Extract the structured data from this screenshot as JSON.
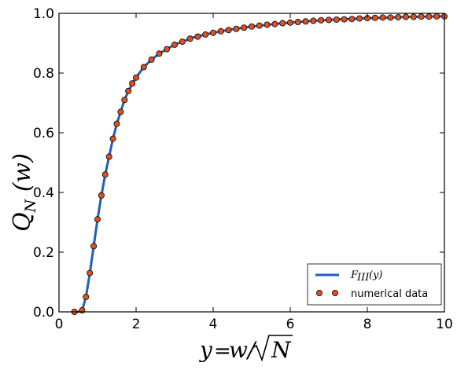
{
  "chart_data": {
    "type": "line",
    "title": "",
    "xlabel": "y = w/√N",
    "ylabel": "Q_N (w)",
    "xlim": [
      0,
      10
    ],
    "ylim": [
      0,
      1.0
    ],
    "x_ticks": [
      0,
      2,
      4,
      6,
      8,
      10
    ],
    "x_tick_labels": [
      "0",
      "2",
      "4",
      "6",
      "8",
      "10"
    ],
    "y_ticks": [
      0.0,
      0.2,
      0.4,
      0.6,
      0.8,
      1.0
    ],
    "y_tick_labels": [
      "0.0",
      "0.2",
      "0.4",
      "0.6",
      "0.8",
      "1.0"
    ],
    "grid": false,
    "legend_position": "bottom-right",
    "series": [
      {
        "name": "F_III(y)",
        "kind": "line",
        "color": "#1f5fbf",
        "x": [
          0.4,
          0.5,
          0.6,
          0.7,
          0.8,
          0.9,
          1.0,
          1.1,
          1.2,
          1.3,
          1.4,
          1.5,
          1.6,
          1.7,
          1.8,
          2.0,
          2.2,
          2.4,
          2.6,
          2.8,
          3.0,
          3.5,
          4.0,
          4.5,
          5.0,
          5.5,
          6.0,
          6.5,
          7.0,
          7.5,
          8.0,
          8.5,
          9.0,
          9.5,
          10.0
        ],
        "y": [
          0.0,
          0.0,
          0.005,
          0.05,
          0.13,
          0.22,
          0.31,
          0.39,
          0.46,
          0.52,
          0.58,
          0.63,
          0.67,
          0.71,
          0.74,
          0.785,
          0.82,
          0.845,
          0.865,
          0.88,
          0.895,
          0.92,
          0.935,
          0.947,
          0.956,
          0.963,
          0.969,
          0.974,
          0.978,
          0.981,
          0.984,
          0.986,
          0.988,
          0.989,
          0.99
        ]
      },
      {
        "name": "numerical data",
        "kind": "scatter",
        "color": "#e0501e",
        "x": [
          0.4,
          0.6,
          0.7,
          0.8,
          0.9,
          1.0,
          1.1,
          1.2,
          1.3,
          1.4,
          1.5,
          1.6,
          1.7,
          1.8,
          1.9,
          2.0,
          2.2,
          2.4,
          2.6,
          2.8,
          3.0,
          3.2,
          3.4,
          3.6,
          3.8,
          4.0,
          4.2,
          4.4,
          4.6,
          4.8,
          5.0,
          5.2,
          5.4,
          5.6,
          5.8,
          6.0,
          6.2,
          6.4,
          6.6,
          6.8,
          7.0,
          7.2,
          7.4,
          7.6,
          7.8,
          8.0,
          8.2,
          8.4,
          8.6,
          8.8,
          9.0,
          9.2,
          9.4,
          9.6,
          9.8,
          10.0
        ],
        "y": [
          0.0,
          0.005,
          0.05,
          0.13,
          0.22,
          0.31,
          0.39,
          0.46,
          0.52,
          0.58,
          0.63,
          0.67,
          0.71,
          0.74,
          0.765,
          0.785,
          0.82,
          0.845,
          0.865,
          0.88,
          0.895,
          0.905,
          0.915,
          0.922,
          0.929,
          0.935,
          0.94,
          0.944,
          0.948,
          0.952,
          0.956,
          0.959,
          0.962,
          0.964,
          0.967,
          0.969,
          0.971,
          0.973,
          0.975,
          0.977,
          0.978,
          0.979,
          0.98,
          0.981,
          0.983,
          0.984,
          0.985,
          0.986,
          0.986,
          0.987,
          0.988,
          0.988,
          0.989,
          0.989,
          0.99,
          0.99
        ]
      }
    ]
  }
}
